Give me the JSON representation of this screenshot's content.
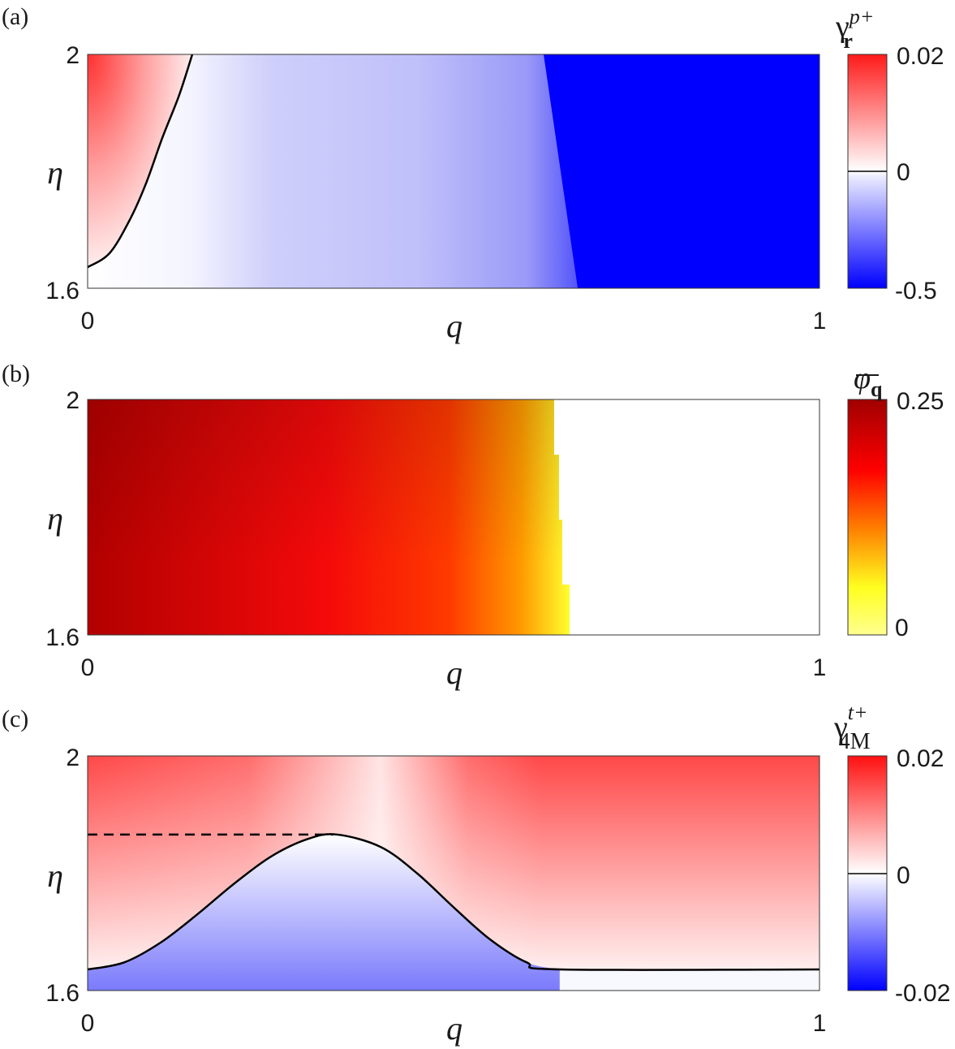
{
  "chart_data": [
    {
      "type": "heatmap",
      "panel_label": "(a)",
      "xlabel": "q",
      "ylabel": "η",
      "xlim": [
        0,
        1
      ],
      "ylim": [
        1.6,
        2
      ],
      "xticks": [
        "0",
        "1"
      ],
      "yticks": [
        "1.6",
        "2"
      ],
      "colorbar": {
        "title_base": "γ",
        "title_sup": "p+",
        "title_sub": "r",
        "ticks": [
          "0.02",
          "0",
          "-0.5"
        ],
        "range": [
          -0.5,
          0.02
        ]
      },
      "zero_contour": {
        "q": [
          0,
          0.03,
          0.058,
          0.08,
          0.102,
          0.125,
          0.143
        ],
        "eta": [
          1.636,
          1.66,
          1.718,
          1.78,
          1.857,
          1.93,
          2.0
        ]
      }
    },
    {
      "type": "heatmap",
      "panel_label": "(b)",
      "xlabel": "q",
      "ylabel": "η",
      "xlim": [
        0,
        1
      ],
      "ylim": [
        1.6,
        2
      ],
      "xticks": [
        "0",
        "1"
      ],
      "yticks": [
        "1.6",
        "2"
      ],
      "colorbar": {
        "title_base": "φ",
        "title_sub": "q",
        "ticks": [
          "0.25",
          "0"
        ],
        "range": [
          0,
          0.25
        ]
      },
      "nonzero_region_q_max": {
        "eta": [
          2.0,
          1.6
        ],
        "q": [
          0.64,
          0.66
        ]
      }
    },
    {
      "type": "heatmap",
      "panel_label": "(c)",
      "xlabel": "q",
      "ylabel": "η",
      "xlim": [
        0,
        1
      ],
      "ylim": [
        1.6,
        2
      ],
      "xticks": [
        "0",
        "1"
      ],
      "yticks": [
        "1.6",
        "2"
      ],
      "colorbar": {
        "title_base": "γ",
        "title_sup": "t+",
        "title_sub": "4M",
        "ticks": [
          "0.02",
          "0",
          "-0.02"
        ],
        "range": [
          -0.02,
          0.02
        ]
      },
      "zero_contour": {
        "q": [
          0,
          0.05,
          0.1,
          0.15,
          0.2,
          0.25,
          0.3,
          0.34,
          0.4,
          0.45,
          0.5,
          0.55,
          0.6,
          0.645,
          1
        ],
        "eta": [
          1.636,
          1.648,
          1.682,
          1.73,
          1.782,
          1.828,
          1.858,
          1.866,
          1.845,
          1.8,
          1.742,
          1.687,
          1.648,
          1.636,
          1.636
        ]
      },
      "dashed_line": {
        "q": [
          0,
          0.335
        ],
        "eta": [
          1.866,
          1.866
        ]
      }
    }
  ],
  "colors": {
    "red": "#ff1a1a",
    "blue": "#0000ff",
    "darkred": "#aa0000",
    "yellow": "#ffff40"
  }
}
